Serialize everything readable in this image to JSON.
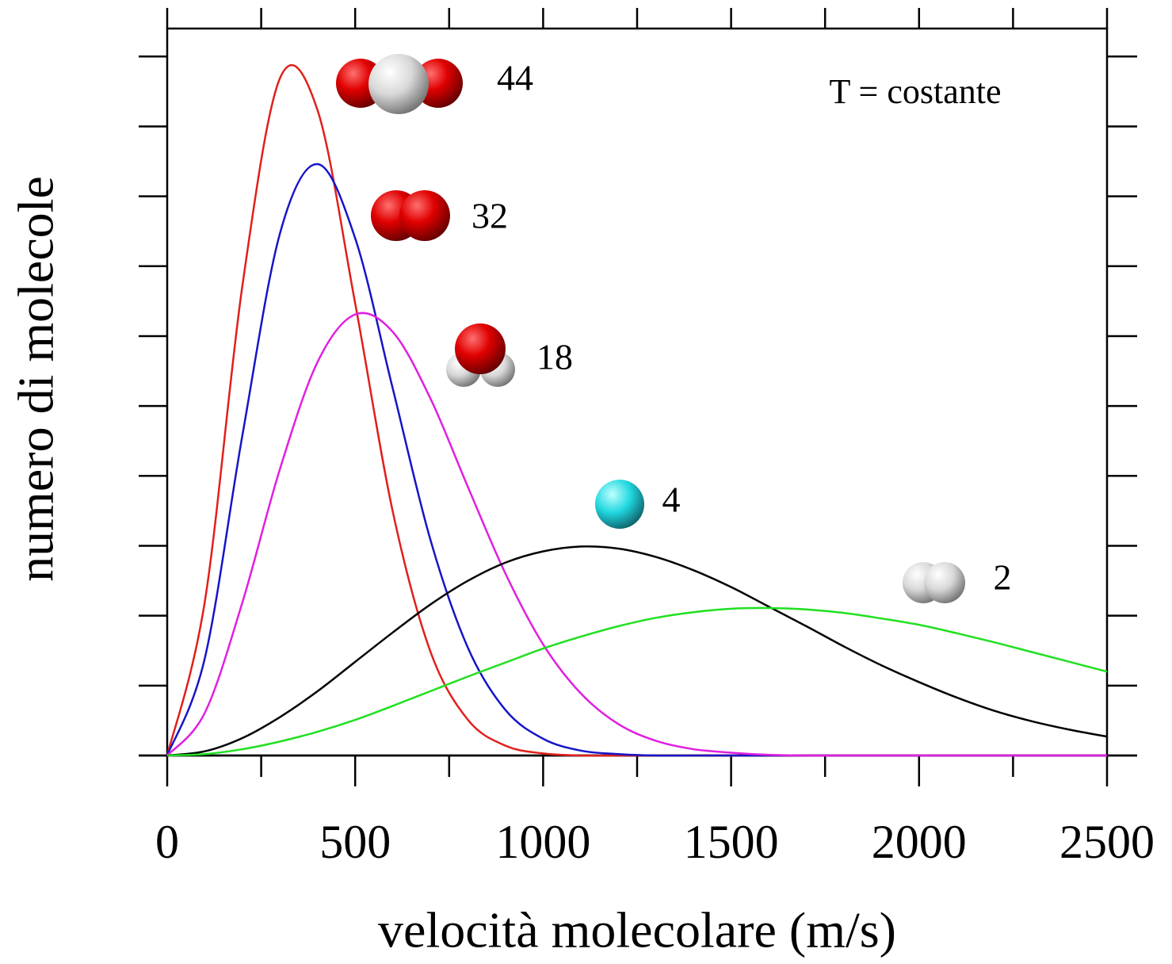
{
  "chart_data": {
    "type": "line",
    "x_label": "velocità molecolare (m/s)",
    "y_label": "numero di molecole",
    "annotation": "T = costante",
    "x": [
      0,
      100,
      200,
      300,
      400,
      500,
      600,
      700,
      800,
      900,
      1000,
      1100,
      1200,
      1300,
      1400,
      1500,
      1600,
      1700,
      1800,
      1900,
      2000,
      2100,
      2200,
      2300,
      2400,
      2500
    ],
    "series": [
      {
        "name": "44",
        "color": "#e0201a",
        "values": [
          0,
          2.2,
          6.72,
          9.69,
          9.23,
          6.47,
          3.49,
          1.49,
          0.51,
          0.14,
          0.03,
          0,
          0,
          0,
          0,
          0,
          0,
          0,
          0,
          0,
          0,
          0,
          0,
          0,
          0,
          0
        ]
      },
      {
        "name": "32",
        "color": "#1515c8",
        "values": [
          0,
          1.39,
          4.58,
          7.47,
          8.46,
          7.4,
          5.25,
          3.09,
          1.54,
          0.65,
          0.24,
          0.07,
          0.02,
          0,
          0,
          0,
          0,
          0,
          0,
          0,
          0,
          0,
          0,
          0,
          0,
          0
        ]
      },
      {
        "name": "18",
        "color": "#e020e0",
        "values": [
          0,
          0.61,
          2.19,
          4.1,
          5.63,
          6.31,
          6.06,
          5.11,
          3.84,
          2.6,
          1.59,
          0.89,
          0.45,
          0.21,
          0.09,
          0.04,
          0.01,
          0,
          0,
          0,
          0,
          0,
          0,
          0,
          0,
          0
        ]
      },
      {
        "name": "4",
        "color": "#000000",
        "values": [
          0,
          0.06,
          0.25,
          0.55,
          0.92,
          1.34,
          1.76,
          2.16,
          2.5,
          2.76,
          2.92,
          2.99,
          2.96,
          2.84,
          2.65,
          2.41,
          2.13,
          1.85,
          1.56,
          1.29,
          1.05,
          0.83,
          0.64,
          0.49,
          0.37,
          0.27
        ]
      },
      {
        "name": "2",
        "color": "#20e020",
        "values": [
          0,
          0.02,
          0.09,
          0.2,
          0.34,
          0.51,
          0.71,
          0.92,
          1.13,
          1.33,
          1.53,
          1.7,
          1.85,
          1.97,
          2.05,
          2.1,
          2.11,
          2.09,
          2.04,
          1.96,
          1.87,
          1.75,
          1.62,
          1.48,
          1.34,
          1.2
        ]
      }
    ],
    "xlim": [
      0,
      2500
    ],
    "xticks": [
      0,
      500,
      1000,
      1500,
      2000,
      2500
    ],
    "x_minor_ticks": [
      250,
      750,
      1250,
      1750,
      2250
    ],
    "ylim": [
      0,
      10.4
    ],
    "y_tick_marks": [
      0,
      1,
      2,
      3,
      4,
      5,
      6,
      7,
      8,
      9,
      10
    ]
  }
}
